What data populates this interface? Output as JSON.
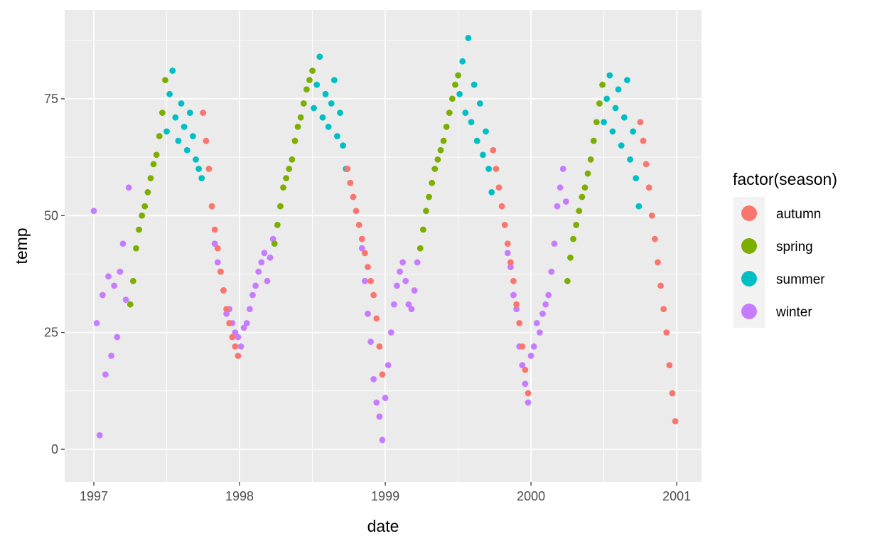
{
  "chart_data": {
    "type": "scatter",
    "title": "",
    "xlabel": "date",
    "ylabel": "temp",
    "xlim": [
      1996.8,
      2001.17
    ],
    "ylim": [
      -7,
      94
    ],
    "x_ticks": [
      {
        "value": 1997,
        "label": "1997"
      },
      {
        "value": 1998,
        "label": "1998"
      },
      {
        "value": 1999,
        "label": "1999"
      },
      {
        "value": 2000,
        "label": "2000"
      },
      {
        "value": 2001,
        "label": "2001"
      }
    ],
    "y_ticks": [
      {
        "value": 0,
        "label": "0"
      },
      {
        "value": 25,
        "label": "25"
      },
      {
        "value": 50,
        "label": "50"
      },
      {
        "value": 75,
        "label": "75"
      }
    ],
    "legend": {
      "title": "factor(season)",
      "placement": "right",
      "entries": [
        {
          "key": "autumn",
          "label": "autumn",
          "color": "#F8766D"
        },
        {
          "key": "spring",
          "label": "spring",
          "color": "#7CAE00"
        },
        {
          "key": "summer",
          "label": "summer",
          "color": "#00BFC4"
        },
        {
          "key": "winter",
          "label": "winter",
          "color": "#C77CFF"
        }
      ]
    },
    "series": [
      {
        "name": "winter",
        "color": "#C77CFF",
        "x": [
          1997.0,
          1997.02,
          1997.04,
          1997.06,
          1997.08,
          1997.1,
          1997.12,
          1997.14,
          1997.16,
          1997.18,
          1997.2,
          1997.22,
          1997.24,
          1997.83,
          1997.85,
          1997.87,
          1997.89,
          1997.91,
          1997.93,
          1997.95,
          1997.97,
          1997.99,
          1998.01,
          1998.03,
          1998.05,
          1998.07,
          1998.09,
          1998.11,
          1998.13,
          1998.15,
          1998.17,
          1998.19,
          1998.21,
          1998.23,
          1998.84,
          1998.86,
          1998.88,
          1998.9,
          1998.92,
          1998.94,
          1998.96,
          1998.98,
          1999.0,
          1999.02,
          1999.04,
          1999.06,
          1999.08,
          1999.1,
          1999.12,
          1999.14,
          1999.16,
          1999.18,
          1999.2,
          1999.22,
          1999.84,
          1999.86,
          1999.88,
          1999.9,
          1999.92,
          1999.94,
          1999.96,
          1999.98,
          2000.0,
          2000.02,
          2000.04,
          2000.06,
          2000.08,
          2000.1,
          2000.12,
          2000.14,
          2000.16,
          2000.18,
          2000.2,
          2000.22,
          2000.24
        ],
        "values": [
          51,
          27,
          3,
          33,
          16,
          37,
          20,
          35,
          24,
          38,
          44,
          32,
          56,
          44,
          40,
          38,
          34,
          29,
          30,
          27,
          25,
          24,
          22,
          26,
          27,
          30,
          33,
          35,
          38,
          40,
          42,
          36,
          41,
          45,
          43,
          36,
          29,
          23,
          15,
          10,
          7,
          2,
          11,
          18,
          25,
          31,
          35,
          38,
          40,
          36,
          31,
          30,
          34,
          40,
          42,
          39,
          33,
          30,
          22,
          18,
          14,
          10,
          20,
          22,
          27,
          25,
          29,
          31,
          33,
          38,
          44,
          52,
          56,
          60,
          53
        ]
      },
      {
        "name": "spring",
        "color": "#7CAE00",
        "x": [
          1997.25,
          1997.27,
          1997.29,
          1997.31,
          1997.33,
          1997.35,
          1997.37,
          1997.39,
          1997.41,
          1997.43,
          1997.45,
          1997.47,
          1997.49,
          1998.24,
          1998.26,
          1998.28,
          1998.3,
          1998.32,
          1998.34,
          1998.36,
          1998.38,
          1998.4,
          1998.42,
          1998.44,
          1998.46,
          1998.48,
          1998.5,
          1999.24,
          1999.26,
          1999.28,
          1999.3,
          1999.32,
          1999.34,
          1999.36,
          1999.38,
          1999.4,
          1999.42,
          1999.44,
          1999.46,
          1999.48,
          1999.5,
          2000.25,
          2000.27,
          2000.29,
          2000.31,
          2000.33,
          2000.35,
          2000.37,
          2000.39,
          2000.41,
          2000.43,
          2000.45,
          2000.47,
          2000.49
        ],
        "values": [
          31,
          36,
          43,
          47,
          50,
          52,
          55,
          58,
          61,
          63,
          67,
          72,
          79,
          44,
          48,
          52,
          56,
          58,
          60,
          62,
          66,
          69,
          71,
          74,
          77,
          79,
          81,
          43,
          47,
          51,
          54,
          57,
          60,
          62,
          64,
          66,
          69,
          72,
          75,
          78,
          80,
          36,
          41,
          45,
          48,
          51,
          54,
          56,
          59,
          62,
          66,
          70,
          74,
          78
        ]
      },
      {
        "name": "summer",
        "color": "#00BFC4",
        "x": [
          1997.5,
          1997.52,
          1997.54,
          1997.56,
          1997.58,
          1997.6,
          1997.62,
          1997.64,
          1997.66,
          1997.68,
          1997.7,
          1997.72,
          1997.74,
          1998.51,
          1998.53,
          1998.55,
          1998.57,
          1998.59,
          1998.61,
          1998.63,
          1998.65,
          1998.67,
          1998.69,
          1998.71,
          1998.73,
          1999.51,
          1999.53,
          1999.55,
          1999.57,
          1999.59,
          1999.61,
          1999.63,
          1999.65,
          1999.67,
          1999.69,
          1999.71,
          1999.73,
          2000.5,
          2000.52,
          2000.54,
          2000.56,
          2000.58,
          2000.6,
          2000.62,
          2000.64,
          2000.66,
          2000.68,
          2000.7,
          2000.72,
          2000.74
        ],
        "values": [
          68,
          76,
          81,
          71,
          66,
          74,
          69,
          64,
          72,
          67,
          62,
          60,
          58,
          73,
          78,
          84,
          71,
          76,
          69,
          74,
          79,
          67,
          72,
          65,
          60,
          76,
          83,
          72,
          88,
          70,
          78,
          66,
          74,
          63,
          68,
          60,
          55,
          70,
          75,
          80,
          68,
          73,
          77,
          65,
          71,
          79,
          62,
          68,
          58,
          52
        ]
      },
      {
        "name": "autumn",
        "color": "#F8766D",
        "x": [
          1997.75,
          1997.77,
          1997.79,
          1997.81,
          1997.83,
          1997.85,
          1997.87,
          1997.89,
          1997.91,
          1997.93,
          1997.95,
          1997.97,
          1997.99,
          1998.74,
          1998.76,
          1998.78,
          1998.8,
          1998.82,
          1998.84,
          1998.86,
          1998.88,
          1998.9,
          1998.92,
          1998.94,
          1998.96,
          1998.98,
          1999.74,
          1999.76,
          1999.78,
          1999.8,
          1999.82,
          1999.84,
          1999.86,
          1999.88,
          1999.9,
          1999.92,
          1999.94,
          1999.96,
          1999.98,
          2000.75,
          2000.77,
          2000.79,
          2000.81,
          2000.83,
          2000.85,
          2000.87,
          2000.89,
          2000.91,
          2000.93,
          2000.95,
          2000.97,
          2000.99
        ],
        "values": [
          72,
          66,
          60,
          52,
          47,
          43,
          38,
          34,
          30,
          27,
          24,
          22,
          20,
          60,
          57,
          54,
          51,
          48,
          45,
          42,
          39,
          36,
          33,
          28,
          22,
          16,
          64,
          60,
          56,
          52,
          48,
          44,
          40,
          36,
          31,
          27,
          22,
          17,
          12,
          70,
          66,
          61,
          56,
          50,
          45,
          40,
          35,
          30,
          25,
          18,
          12,
          6
        ]
      }
    ]
  }
}
